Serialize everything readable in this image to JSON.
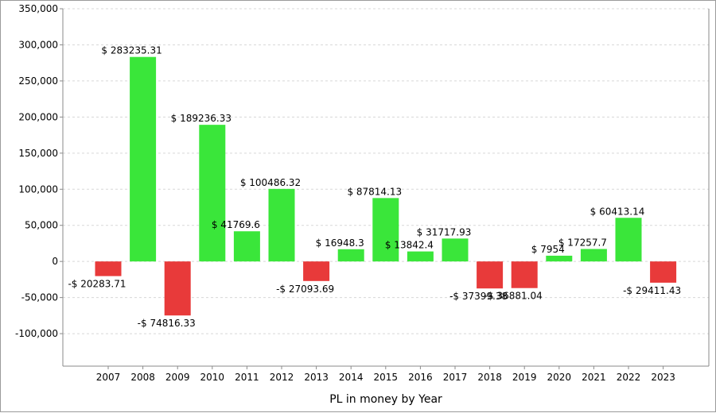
{
  "chart_data": {
    "type": "bar",
    "title": "",
    "xlabel": "PL in money by Year",
    "ylabel": "",
    "categories": [
      "2007",
      "2008",
      "2009",
      "2010",
      "2011",
      "2012",
      "2013",
      "2014",
      "2015",
      "2016",
      "2017",
      "2018",
      "2019",
      "2020",
      "2021",
      "2022",
      "2023"
    ],
    "values": [
      -20283.71,
      283235.31,
      -74816.33,
      189236.33,
      41769.6,
      100486.32,
      -27093.69,
      16948.3,
      87814.13,
      13842.4,
      31717.93,
      -37399.38,
      -36881.04,
      7954,
      17257.7,
      60413.14,
      -29411.43
    ],
    "data_labels": [
      "-$ 20283.71",
      "$ 283235.31",
      "-$ 74816.33",
      "$ 189236.33",
      "$ 41769.6",
      "$ 100486.32",
      "-$ 27093.69",
      "$ 16948.3",
      "$ 87814.13",
      "$ 13842.4",
      "$ 31717.93",
      "-$ 37399.38",
      "-$ 36881.04",
      "$ 7954",
      "$ 17257.7",
      "$ 60413.14",
      "-$ 29411.43"
    ],
    "ylim": [
      -145000,
      350000
    ],
    "yticks": [
      -100000,
      -50000,
      0,
      50000,
      100000,
      150000,
      200000,
      250000,
      300000,
      350000
    ],
    "ytick_labels": [
      "-100,000",
      "-50,000",
      "0",
      "50,000",
      "100,000",
      "150,000",
      "200,000",
      "250,000",
      "300,000",
      "350,000"
    ],
    "grid": true,
    "colors": {
      "positive": "#3ae63a",
      "negative": "#e83a3a",
      "grid": "#d8d8d8",
      "axis": "#8a8a8a"
    }
  }
}
